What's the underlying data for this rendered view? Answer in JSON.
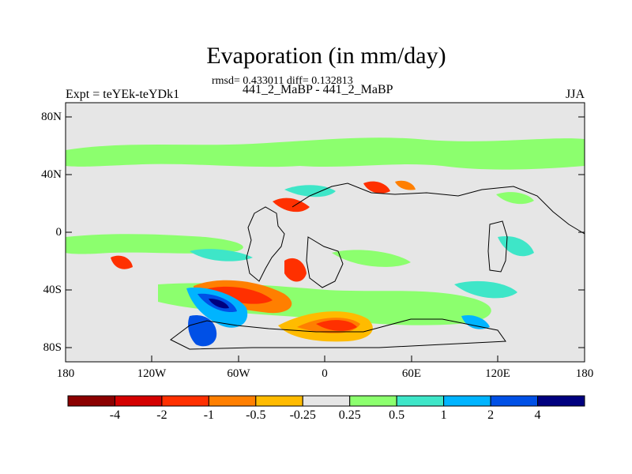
{
  "header": {
    "title": "Evaporation (in mm/day)",
    "stats": "rmsd= 0.433011 diff= 0.132813",
    "subtitle": "441_2_MaBP - 441_2_MaBP",
    "left_label": "Expt = teYEk-teYDk1",
    "right_label": "JJA"
  },
  "axes": {
    "lat_ticks": [
      "80N",
      "40N",
      "0",
      "40S",
      "80S"
    ],
    "lon_ticks": [
      "180",
      "120W",
      "60W",
      "0",
      "60E",
      "120E",
      "180"
    ]
  },
  "colorbar": {
    "labels": [
      "-4",
      "-2",
      "-1",
      "-0.5",
      "-0.25",
      "0.25",
      "0.5",
      "1",
      "2",
      "4"
    ],
    "colors": [
      "#8b0000",
      "#d40000",
      "#ff3000",
      "#ff7f00",
      "#ffbb00",
      "#e6e6e6",
      "#8cff6e",
      "#3ee6c8",
      "#00b4ff",
      "#0050e6",
      "#00007f"
    ]
  },
  "chart_data": {
    "type": "heatmap",
    "title": "Evaporation (in mm/day)",
    "units": "mm/day",
    "season": "JJA",
    "experiment": "teYEk-teYDk1",
    "xlim": [
      "180",
      "180"
    ],
    "ylim": [
      "90S",
      "90N"
    ],
    "levels": [
      -4,
      -2,
      -1,
      -0.5,
      -0.25,
      0.25,
      0.5,
      1,
      2,
      4
    ],
    "regions": [
      {
        "name": "North mid-latitude band",
        "lon": [
          -180,
          180
        ],
        "lat": [
          38,
          60
        ],
        "value": 0.3
      },
      {
        "name": "Southern Pacific negative anomaly",
        "lon": [
          -105,
          -40
        ],
        "lat": [
          -70,
          -40
        ],
        "value": -2
      },
      {
        "name": "South Pacific positive anomaly",
        "lon": [
          -100,
          -70
        ],
        "lat": [
          -85,
          -50
        ],
        "value": 2
      },
      {
        "name": "South Atlantic negative anomaly",
        "lon": [
          -20,
          30
        ],
        "lat": [
          -80,
          -60
        ],
        "value": -1.5
      }
    ]
  }
}
